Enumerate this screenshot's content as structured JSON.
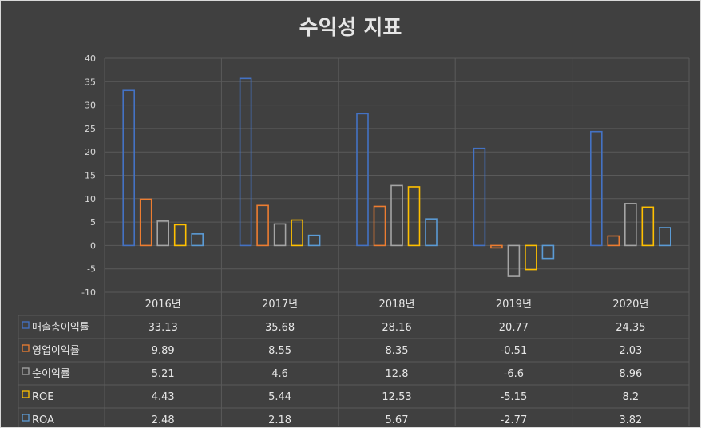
{
  "colors": {
    "background": "#404040",
    "grid": "#5a5a5a",
    "text": "#e6e6e6"
  },
  "chart_data": {
    "type": "bar",
    "title": "수익성 지표",
    "categories": [
      "2016년",
      "2017년",
      "2018년",
      "2019년",
      "2020년"
    ],
    "ylim": [
      -10,
      40
    ],
    "yticks": [
      40,
      35,
      30,
      25,
      20,
      15,
      10,
      5,
      0,
      -5,
      -10
    ],
    "grid": true,
    "legend_placement": "data-table-left",
    "series": [
      {
        "name": "매출총이익률",
        "color": "#4472c4",
        "values": [
          33.13,
          35.68,
          28.16,
          20.77,
          24.35
        ]
      },
      {
        "name": "영업이익률",
        "color": "#ed7d31",
        "values": [
          9.89,
          8.55,
          8.35,
          -0.51,
          2.03
        ]
      },
      {
        "name": "순이익률",
        "color": "#a5a5a5",
        "values": [
          5.21,
          4.6,
          12.8,
          -6.6,
          8.96
        ]
      },
      {
        "name": "ROE",
        "color": "#ffc000",
        "values": [
          4.43,
          5.44,
          12.53,
          -5.15,
          8.2
        ]
      },
      {
        "name": "ROA",
        "color": "#5b9bd5",
        "values": [
          2.48,
          2.18,
          5.67,
          -2.77,
          3.82
        ]
      }
    ]
  }
}
